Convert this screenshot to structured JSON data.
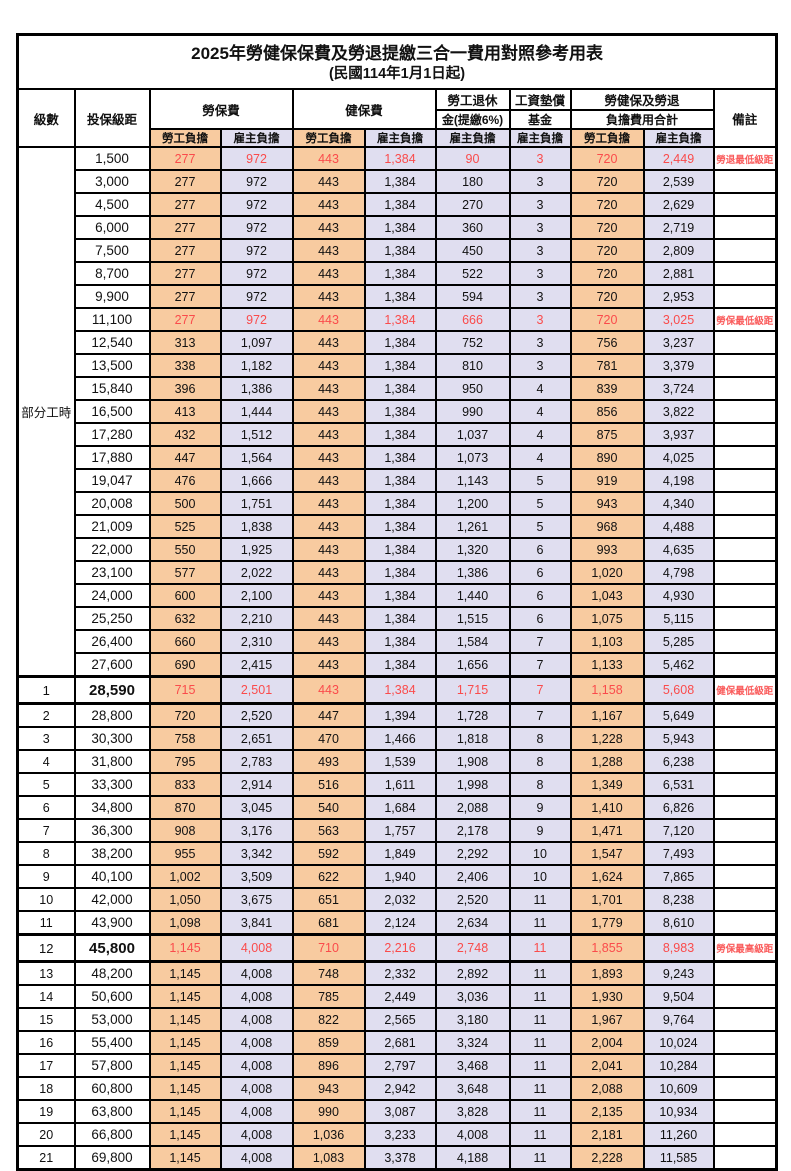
{
  "table": {
    "title": "2025年勞健保保費及勞退提繳三合一費用對照參考用表",
    "subtitle": "(民國114年1月1日起)",
    "colors": {
      "employee_share_bg": "#f8cba0",
      "employer_share_bg": "#e0def0",
      "highlight_text": "#fa4b4b",
      "border": "#000000"
    },
    "header": {
      "level": "級數",
      "salary_bracket": "投保級距",
      "labor_insurance": "勞保費",
      "health_insurance": "健保費",
      "pension_line1": "勞工退休",
      "pension_line2": "金(提繳6%)",
      "wage_fund_line1": "工資墊償",
      "wage_fund_line2": "基金",
      "total_line1": "勞健保及勞退",
      "total_line2": "負擔費用合計",
      "remark": "備註",
      "employee_share": "勞工負擔",
      "employer_share": "雇主負擔"
    },
    "part_time_label": "部分工時",
    "part_time_span": 23,
    "rows": [
      {
        "level": "",
        "salary": "1,500",
        "values": [
          "277",
          "972",
          "443",
          "1,384",
          "90",
          "3",
          "720",
          "2,449"
        ],
        "remark": "勞退最低級距",
        "highlight": true,
        "major": false
      },
      {
        "level": "",
        "salary": "3,000",
        "values": [
          "277",
          "972",
          "443",
          "1,384",
          "180",
          "3",
          "720",
          "2,539"
        ],
        "remark": "",
        "highlight": false,
        "major": false
      },
      {
        "level": "",
        "salary": "4,500",
        "values": [
          "277",
          "972",
          "443",
          "1,384",
          "270",
          "3",
          "720",
          "2,629"
        ],
        "remark": "",
        "highlight": false,
        "major": false
      },
      {
        "level": "",
        "salary": "6,000",
        "values": [
          "277",
          "972",
          "443",
          "1,384",
          "360",
          "3",
          "720",
          "2,719"
        ],
        "remark": "",
        "highlight": false,
        "major": false
      },
      {
        "level": "",
        "salary": "7,500",
        "values": [
          "277",
          "972",
          "443",
          "1,384",
          "450",
          "3",
          "720",
          "2,809"
        ],
        "remark": "",
        "highlight": false,
        "major": false
      },
      {
        "level": "",
        "salary": "8,700",
        "values": [
          "277",
          "972",
          "443",
          "1,384",
          "522",
          "3",
          "720",
          "2,881"
        ],
        "remark": "",
        "highlight": false,
        "major": false
      },
      {
        "level": "",
        "salary": "9,900",
        "values": [
          "277",
          "972",
          "443",
          "1,384",
          "594",
          "3",
          "720",
          "2,953"
        ],
        "remark": "",
        "highlight": false,
        "major": false
      },
      {
        "level": "",
        "salary": "11,100",
        "values": [
          "277",
          "972",
          "443",
          "1,384",
          "666",
          "3",
          "720",
          "3,025"
        ],
        "remark": "勞保最低級距",
        "highlight": true,
        "major": false
      },
      {
        "level": "",
        "salary": "12,540",
        "values": [
          "313",
          "1,097",
          "443",
          "1,384",
          "752",
          "3",
          "756",
          "3,237"
        ],
        "remark": "",
        "highlight": false,
        "major": false
      },
      {
        "level": "",
        "salary": "13,500",
        "values": [
          "338",
          "1,182",
          "443",
          "1,384",
          "810",
          "3",
          "781",
          "3,379"
        ],
        "remark": "",
        "highlight": false,
        "major": false
      },
      {
        "level": "",
        "salary": "15,840",
        "values": [
          "396",
          "1,386",
          "443",
          "1,384",
          "950",
          "4",
          "839",
          "3,724"
        ],
        "remark": "",
        "highlight": false,
        "major": false
      },
      {
        "level": "",
        "salary": "16,500",
        "values": [
          "413",
          "1,444",
          "443",
          "1,384",
          "990",
          "4",
          "856",
          "3,822"
        ],
        "remark": "",
        "highlight": false,
        "major": false
      },
      {
        "level": "",
        "salary": "17,280",
        "values": [
          "432",
          "1,512",
          "443",
          "1,384",
          "1,037",
          "4",
          "875",
          "3,937"
        ],
        "remark": "",
        "highlight": false,
        "major": false
      },
      {
        "level": "",
        "salary": "17,880",
        "values": [
          "447",
          "1,564",
          "443",
          "1,384",
          "1,073",
          "4",
          "890",
          "4,025"
        ],
        "remark": "",
        "highlight": false,
        "major": false
      },
      {
        "level": "",
        "salary": "19,047",
        "values": [
          "476",
          "1,666",
          "443",
          "1,384",
          "1,143",
          "5",
          "919",
          "4,198"
        ],
        "remark": "",
        "highlight": false,
        "major": false
      },
      {
        "level": "",
        "salary": "20,008",
        "values": [
          "500",
          "1,751",
          "443",
          "1,384",
          "1,200",
          "5",
          "943",
          "4,340"
        ],
        "remark": "",
        "highlight": false,
        "major": false
      },
      {
        "level": "",
        "salary": "21,009",
        "values": [
          "525",
          "1,838",
          "443",
          "1,384",
          "1,261",
          "5",
          "968",
          "4,488"
        ],
        "remark": "",
        "highlight": false,
        "major": false
      },
      {
        "level": "",
        "salary": "22,000",
        "values": [
          "550",
          "1,925",
          "443",
          "1,384",
          "1,320",
          "6",
          "993",
          "4,635"
        ],
        "remark": "",
        "highlight": false,
        "major": false
      },
      {
        "level": "",
        "salary": "23,100",
        "values": [
          "577",
          "2,022",
          "443",
          "1,384",
          "1,386",
          "6",
          "1,020",
          "4,798"
        ],
        "remark": "",
        "highlight": false,
        "major": false
      },
      {
        "level": "",
        "salary": "24,000",
        "values": [
          "600",
          "2,100",
          "443",
          "1,384",
          "1,440",
          "6",
          "1,043",
          "4,930"
        ],
        "remark": "",
        "highlight": false,
        "major": false
      },
      {
        "level": "",
        "salary": "25,250",
        "values": [
          "632",
          "2,210",
          "443",
          "1,384",
          "1,515",
          "6",
          "1,075",
          "5,115"
        ],
        "remark": "",
        "highlight": false,
        "major": false
      },
      {
        "level": "",
        "salary": "26,400",
        "values": [
          "660",
          "2,310",
          "443",
          "1,384",
          "1,584",
          "7",
          "1,103",
          "5,285"
        ],
        "remark": "",
        "highlight": false,
        "major": false
      },
      {
        "level": "",
        "salary": "27,600",
        "values": [
          "690",
          "2,415",
          "443",
          "1,384",
          "1,656",
          "7",
          "1,133",
          "5,462"
        ],
        "remark": "",
        "highlight": false,
        "major": false
      },
      {
        "level": "1",
        "salary": "28,590",
        "values": [
          "715",
          "2,501",
          "443",
          "1,384",
          "1,715",
          "7",
          "1,158",
          "5,608"
        ],
        "remark": "健保最低級距",
        "highlight": true,
        "major": true
      },
      {
        "level": "2",
        "salary": "28,800",
        "values": [
          "720",
          "2,520",
          "447",
          "1,394",
          "1,728",
          "7",
          "1,167",
          "5,649"
        ],
        "remark": "",
        "highlight": false,
        "major": false
      },
      {
        "level": "3",
        "salary": "30,300",
        "values": [
          "758",
          "2,651",
          "470",
          "1,466",
          "1,818",
          "8",
          "1,228",
          "5,943"
        ],
        "remark": "",
        "highlight": false,
        "major": false
      },
      {
        "level": "4",
        "salary": "31,800",
        "values": [
          "795",
          "2,783",
          "493",
          "1,539",
          "1,908",
          "8",
          "1,288",
          "6,238"
        ],
        "remark": "",
        "highlight": false,
        "major": false
      },
      {
        "level": "5",
        "salary": "33,300",
        "values": [
          "833",
          "2,914",
          "516",
          "1,611",
          "1,998",
          "8",
          "1,349",
          "6,531"
        ],
        "remark": "",
        "highlight": false,
        "major": false
      },
      {
        "level": "6",
        "salary": "34,800",
        "values": [
          "870",
          "3,045",
          "540",
          "1,684",
          "2,088",
          "9",
          "1,410",
          "6,826"
        ],
        "remark": "",
        "highlight": false,
        "major": false
      },
      {
        "level": "7",
        "salary": "36,300",
        "values": [
          "908",
          "3,176",
          "563",
          "1,757",
          "2,178",
          "9",
          "1,471",
          "7,120"
        ],
        "remark": "",
        "highlight": false,
        "major": false
      },
      {
        "level": "8",
        "salary": "38,200",
        "values": [
          "955",
          "3,342",
          "592",
          "1,849",
          "2,292",
          "10",
          "1,547",
          "7,493"
        ],
        "remark": "",
        "highlight": false,
        "major": false
      },
      {
        "level": "9",
        "salary": "40,100",
        "values": [
          "1,002",
          "3,509",
          "622",
          "1,940",
          "2,406",
          "10",
          "1,624",
          "7,865"
        ],
        "remark": "",
        "highlight": false,
        "major": false
      },
      {
        "level": "10",
        "salary": "42,000",
        "values": [
          "1,050",
          "3,675",
          "651",
          "2,032",
          "2,520",
          "11",
          "1,701",
          "8,238"
        ],
        "remark": "",
        "highlight": false,
        "major": false
      },
      {
        "level": "11",
        "salary": "43,900",
        "values": [
          "1,098",
          "3,841",
          "681",
          "2,124",
          "2,634",
          "11",
          "1,779",
          "8,610"
        ],
        "remark": "",
        "highlight": false,
        "major": false
      },
      {
        "level": "12",
        "salary": "45,800",
        "values": [
          "1,145",
          "4,008",
          "710",
          "2,216",
          "2,748",
          "11",
          "1,855",
          "8,983"
        ],
        "remark": "勞保最高級距",
        "highlight": true,
        "major": true
      },
      {
        "level": "13",
        "salary": "48,200",
        "values": [
          "1,145",
          "4,008",
          "748",
          "2,332",
          "2,892",
          "11",
          "1,893",
          "9,243"
        ],
        "remark": "",
        "highlight": false,
        "major": false
      },
      {
        "level": "14",
        "salary": "50,600",
        "values": [
          "1,145",
          "4,008",
          "785",
          "2,449",
          "3,036",
          "11",
          "1,930",
          "9,504"
        ],
        "remark": "",
        "highlight": false,
        "major": false
      },
      {
        "level": "15",
        "salary": "53,000",
        "values": [
          "1,145",
          "4,008",
          "822",
          "2,565",
          "3,180",
          "11",
          "1,967",
          "9,764"
        ],
        "remark": "",
        "highlight": false,
        "major": false
      },
      {
        "level": "16",
        "salary": "55,400",
        "values": [
          "1,145",
          "4,008",
          "859",
          "2,681",
          "3,324",
          "11",
          "2,004",
          "10,024"
        ],
        "remark": "",
        "highlight": false,
        "major": false
      },
      {
        "level": "17",
        "salary": "57,800",
        "values": [
          "1,145",
          "4,008",
          "896",
          "2,797",
          "3,468",
          "11",
          "2,041",
          "10,284"
        ],
        "remark": "",
        "highlight": false,
        "major": false
      },
      {
        "level": "18",
        "salary": "60,800",
        "values": [
          "1,145",
          "4,008",
          "943",
          "2,942",
          "3,648",
          "11",
          "2,088",
          "10,609"
        ],
        "remark": "",
        "highlight": false,
        "major": false
      },
      {
        "level": "19",
        "salary": "63,800",
        "values": [
          "1,145",
          "4,008",
          "990",
          "3,087",
          "3,828",
          "11",
          "2,135",
          "10,934"
        ],
        "remark": "",
        "highlight": false,
        "major": false
      },
      {
        "level": "20",
        "salary": "66,800",
        "values": [
          "1,145",
          "4,008",
          "1,036",
          "3,233",
          "4,008",
          "11",
          "2,181",
          "11,260"
        ],
        "remark": "",
        "highlight": false,
        "major": false
      },
      {
        "level": "21",
        "salary": "69,800",
        "values": [
          "1,145",
          "4,008",
          "1,083",
          "3,378",
          "4,188",
          "11",
          "2,228",
          "11,585"
        ],
        "remark": "",
        "highlight": false,
        "major": false
      }
    ]
  }
}
